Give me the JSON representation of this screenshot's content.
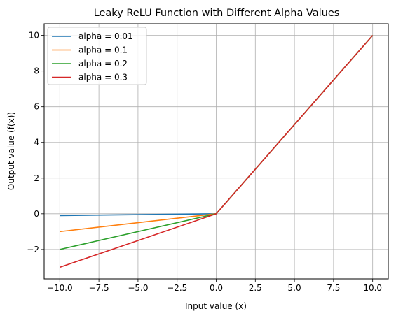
{
  "chart_data": {
    "type": "line",
    "title": "Leaky ReLU Function with Different Alpha Values",
    "xlabel": "Input value (x)",
    "ylabel": "Output value (f(x))",
    "xlim": [
      -11,
      11
    ],
    "ylim": [
      -3.65,
      10.65
    ],
    "xticks": [
      -10.0,
      -7.5,
      -5.0,
      -2.5,
      0.0,
      2.5,
      5.0,
      7.5,
      10.0
    ],
    "yticks": [
      -2,
      0,
      2,
      4,
      6,
      8,
      10
    ],
    "grid": true,
    "legend_position": "top-left",
    "x": [
      -10,
      0,
      10
    ],
    "series": [
      {
        "name": "alpha = 0.01",
        "color": "#1f77b4",
        "values": [
          -0.1,
          0,
          10
        ]
      },
      {
        "name": "alpha = 0.1",
        "color": "#ff7f0e",
        "values": [
          -1.0,
          0,
          10
        ]
      },
      {
        "name": "alpha = 0.2",
        "color": "#2ca02c",
        "values": [
          -2.0,
          0,
          10
        ]
      },
      {
        "name": "alpha = 0.3",
        "color": "#d62728",
        "values": [
          -3.0,
          0,
          10
        ]
      }
    ]
  }
}
